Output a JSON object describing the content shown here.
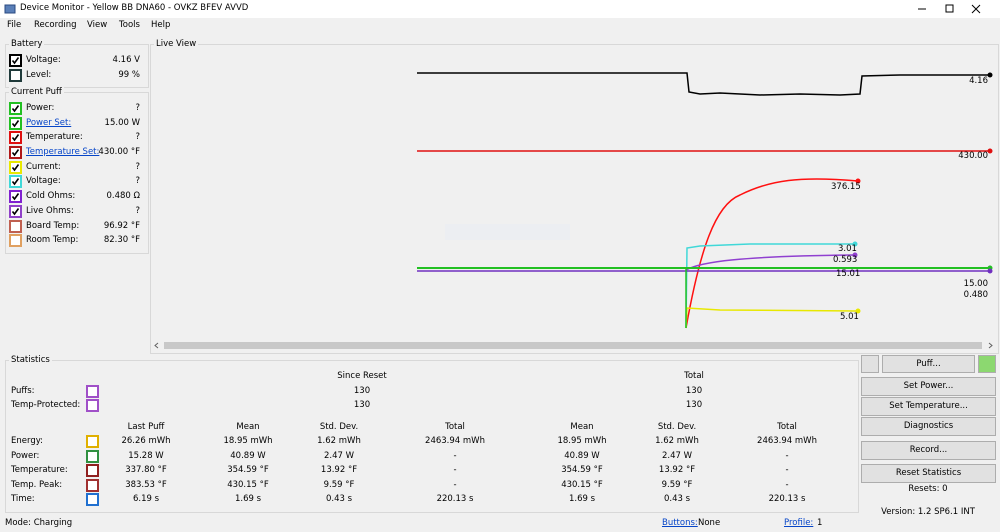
{
  "window": {
    "title": "Device Monitor - Yellow BB DNA60 - OVKZ BFEV AVVD"
  },
  "menu": [
    "File",
    "Recording",
    "View",
    "Tools",
    "Help"
  ],
  "battery": {
    "title": "Battery",
    "rows": [
      {
        "label": "Voltage:",
        "value": "4.16 V",
        "color": "#000000",
        "checked": true
      },
      {
        "label": "Level:",
        "value": "99 %",
        "color": "#1f3a3a",
        "checked": false
      }
    ]
  },
  "current_puff": {
    "title": "Current Puff",
    "rows": [
      {
        "label": "Power:",
        "value": "?",
        "color": "#22c022",
        "checked": true
      },
      {
        "label": "Power Set:",
        "value": "15.00 W",
        "color": "#22c022",
        "checked": true,
        "link": true
      },
      {
        "label": "Temperature:",
        "value": "?",
        "color": "#e01010",
        "checked": true
      },
      {
        "label": "Temperature Set:",
        "value": "430.00 °F",
        "color": "#b01818",
        "checked": true,
        "link": true
      },
      {
        "label": "Current:",
        "value": "?",
        "color": "#e8e800",
        "checked": true
      },
      {
        "label": "Voltage:",
        "value": "?",
        "color": "#40d8d8",
        "checked": true
      },
      {
        "label": "Cold Ohms:",
        "value": "0.480 Ω",
        "color": "#8020d0",
        "checked": true
      },
      {
        "label": "Live Ohms:",
        "value": "?",
        "color": "#9040c8",
        "checked": true
      },
      {
        "label": "Board Temp:",
        "value": "96.92 °F",
        "color": "#c06050",
        "checked": false
      },
      {
        "label": "Room Temp:",
        "value": "82.30 °F",
        "color": "#e0a060",
        "checked": false
      }
    ]
  },
  "live_view": {
    "title": "Live View",
    "labels": [
      "4.16",
      "430.00",
      "376.15",
      "3.01",
      "0.593",
      "15.01",
      "5.01",
      "15.00",
      "0.480"
    ]
  },
  "statistics": {
    "title": "Statistics",
    "group_headers": [
      "Since Reset",
      "Total"
    ],
    "count_rows": [
      {
        "label": "Puffs:",
        "since_reset": "130",
        "total": "130",
        "color": "#a050c8"
      },
      {
        "label": "Temp-Protected:",
        "since_reset": "130",
        "total": "130",
        "color": "#a050c8"
      }
    ],
    "columns": [
      "Last Puff",
      "Mean",
      "Std. Dev.",
      "Total",
      "Mean",
      "Std. Dev.",
      "Total"
    ],
    "rows": [
      {
        "label": "Energy:",
        "color": "#e0b000",
        "values": [
          "26.26 mWh",
          "18.95 mWh",
          "1.62 mWh",
          "2463.94 mWh",
          "18.95 mWh",
          "1.62 mWh",
          "2463.94 mWh"
        ]
      },
      {
        "label": "Power:",
        "color": "#309040",
        "values": [
          "15.28 W",
          "40.89 W",
          "2.47 W",
          "-",
          "40.89 W",
          "2.47 W",
          "-"
        ]
      },
      {
        "label": "Temperature:",
        "color": "#902020",
        "values": [
          "337.80 °F",
          "354.59 °F",
          "13.92 °F",
          "-",
          "354.59 °F",
          "13.92 °F",
          "-"
        ]
      },
      {
        "label": "Temp. Peak:",
        "color": "#a03030",
        "values": [
          "383.53 °F",
          "430.15 °F",
          "9.59 °F",
          "-",
          "430.15 °F",
          "9.59 °F",
          "-"
        ]
      },
      {
        "label": "Time:",
        "color": "#2070d0",
        "values": [
          "6.19 s",
          "1.69 s",
          "0.43 s",
          "220.13 s",
          "1.69 s",
          "0.43 s",
          "220.13 s"
        ]
      }
    ]
  },
  "buttons": {
    "puff": "Puff...",
    "actions": [
      "Set Power...",
      "Set Temperature...",
      "Diagnostics",
      "Record...",
      "Reset Statistics"
    ]
  },
  "resets": "Resets: 0",
  "version": "Version: 1.2 SP6.1 INT",
  "status": {
    "mode": "Mode: Charging",
    "buttons_label": "Buttons:",
    "buttons_value": "None",
    "profile_label": "Profile:",
    "profile_value": "1"
  }
}
